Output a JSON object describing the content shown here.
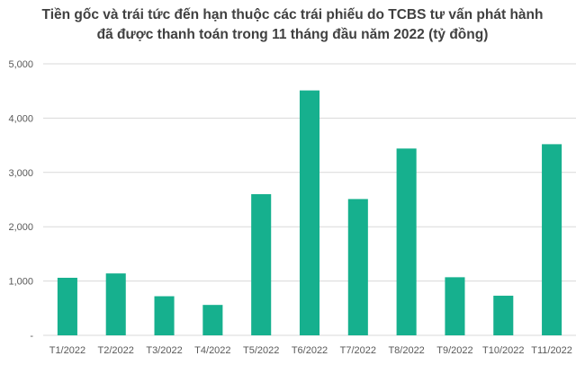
{
  "chart_data": {
    "type": "bar",
    "title": [
      "Tiền gốc và trái tức đến hạn thuộc các trái phiếu do TCBS tư vấn phát hành",
      "đã được thanh toán trong 11 tháng đầu năm 2022 (tỷ đồng)"
    ],
    "xlabel": "",
    "ylabel": "",
    "categories": [
      "T1/2022",
      "T2/2022",
      "T3/2022",
      "T4/2022",
      "T5/2022",
      "T6/2022",
      "T7/2022",
      "T8/2022",
      "T9/2022",
      "T10/2022",
      "T11/2022"
    ],
    "values": [
      1060,
      1140,
      720,
      560,
      2600,
      4510,
      2510,
      3440,
      1070,
      730,
      3520
    ],
    "ylim": [
      0,
      5000
    ],
    "yticks": [
      0,
      1000,
      2000,
      3000,
      4000,
      5000
    ],
    "ytick_labels": [
      "-",
      "1,000",
      "2,000",
      "3,000",
      "4,000",
      "5,000"
    ],
    "grid": true,
    "legend": "none",
    "bar_color": "#16b08e",
    "grid_color": "#d9d9d9"
  }
}
